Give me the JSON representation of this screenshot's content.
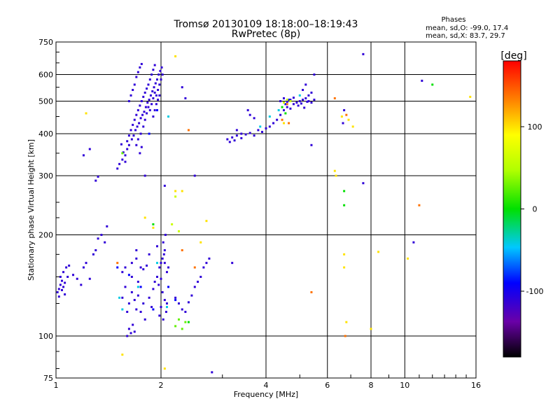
{
  "chart_data": {
    "type": "scatter",
    "title": "Tromsø 20130109 18:18:00–18:19:43",
    "subtitle": "RwPretec (8p)",
    "xlabel": "Frequency [MHz]",
    "ylabel": "Stationary phase Virtual Height [km]",
    "x_scale": "log",
    "y_scale": "log",
    "xlim": [
      1,
      16
    ],
    "ylim": [
      75,
      750
    ],
    "x_ticks": [
      1,
      2,
      4,
      6,
      8,
      10,
      16
    ],
    "x_tick_labels": [
      "1",
      "2",
      "4",
      "6",
      "8",
      "10",
      "16"
    ],
    "y_ticks": [
      75,
      100,
      200,
      300,
      400,
      500,
      600,
      750
    ],
    "y_tick_labels": [
      "75",
      "100",
      "200",
      "300",
      "400",
      "500",
      "600",
      "750"
    ],
    "grid": true,
    "stats": {
      "heading": "Phases",
      "line_o": "mean, sd,O: -99.0, 17.4",
      "line_x": "mean, sd,X:  83.7, 29.7"
    },
    "colorbar": {
      "label": "[deg]",
      "range": [
        -180,
        180
      ],
      "ticks": [
        100,
        0,
        -100
      ],
      "tick_labels": [
        "100",
        "0",
        "-100"
      ]
    },
    "series": [
      {
        "phase": -110,
        "points": [
          [
            1.01,
            135
          ],
          [
            1.02,
            138
          ],
          [
            1.03,
            142
          ],
          [
            1.04,
            146
          ],
          [
            1.05,
            140
          ],
          [
            1.06,
            133
          ],
          [
            1.03,
            150
          ],
          [
            1.05,
            155
          ],
          [
            1.07,
            160
          ],
          [
            1.09,
            162
          ],
          [
            1.02,
            131
          ],
          [
            1.04,
            137
          ],
          [
            1.06,
            144
          ],
          [
            1.08,
            150
          ],
          [
            1.15,
            148
          ],
          [
            1.18,
            142
          ],
          [
            1.2,
            160
          ],
          [
            1.22,
            165
          ],
          [
            1.25,
            148
          ],
          [
            1.12,
            152
          ],
          [
            1.3,
            180
          ],
          [
            1.32,
            195
          ],
          [
            1.28,
            175
          ],
          [
            1.35,
            200
          ],
          [
            1.4,
            212
          ],
          [
            1.38,
            190
          ],
          [
            1.55,
            130
          ],
          [
            1.58,
            140
          ],
          [
            1.62,
            125
          ],
          [
            1.65,
            135
          ],
          [
            1.6,
            118
          ],
          [
            1.68,
            128
          ],
          [
            1.7,
            120
          ],
          [
            1.72,
            132
          ],
          [
            1.75,
            118
          ],
          [
            1.78,
            125
          ],
          [
            1.62,
            105
          ],
          [
            1.64,
            102
          ],
          [
            1.66,
            108
          ],
          [
            1.68,
            103
          ],
          [
            1.6,
            100
          ],
          [
            1.8,
            112
          ],
          [
            1.85,
            130
          ],
          [
            1.88,
            122
          ],
          [
            1.9,
            138
          ],
          [
            1.92,
            145
          ],
          [
            1.95,
            150
          ],
          [
            1.98,
            160
          ],
          [
            2.0,
            165
          ],
          [
            2.02,
            170
          ],
          [
            2.04,
            175
          ],
          [
            2.05,
            180
          ],
          [
            2.03,
            190
          ],
          [
            2.06,
            200
          ],
          [
            2.0,
            148
          ],
          [
            1.97,
            142
          ],
          [
            2.08,
            155
          ],
          [
            2.1,
            160
          ],
          [
            2.02,
            135
          ],
          [
            2.05,
            128
          ],
          [
            2.0,
            122
          ],
          [
            2.07,
            118
          ],
          [
            1.98,
            115
          ],
          [
            2.03,
            112
          ],
          [
            2.08,
            125
          ],
          [
            1.65,
            165
          ],
          [
            1.7,
            170
          ],
          [
            1.75,
            160
          ],
          [
            1.78,
            158
          ],
          [
            1.82,
            162
          ],
          [
            1.58,
            160
          ],
          [
            1.55,
            155
          ],
          [
            2.2,
            130
          ],
          [
            2.25,
            125
          ],
          [
            2.3,
            120
          ],
          [
            2.35,
            118
          ],
          [
            2.4,
            126
          ],
          [
            2.45,
            132
          ],
          [
            2.5,
            140
          ],
          [
            2.55,
            145
          ],
          [
            2.6,
            150
          ],
          [
            2.65,
            160
          ],
          [
            2.7,
            165
          ],
          [
            2.75,
            170
          ],
          [
            2.8,
            78
          ],
          [
            2.5,
            300
          ],
          [
            2.05,
            280
          ],
          [
            2.3,
            550
          ],
          [
            2.35,
            510
          ],
          [
            1.8,
            300
          ],
          [
            1.3,
            290
          ],
          [
            1.32,
            298
          ],
          [
            1.2,
            345
          ],
          [
            1.25,
            360
          ],
          [
            1.5,
            315
          ],
          [
            1.52,
            325
          ],
          [
            1.55,
            335
          ],
          [
            1.58,
            345
          ],
          [
            1.6,
            360
          ],
          [
            1.62,
            370
          ],
          [
            1.65,
            385
          ],
          [
            1.67,
            395
          ],
          [
            1.69,
            410
          ],
          [
            1.71,
            420
          ],
          [
            1.73,
            430
          ],
          [
            1.75,
            445
          ],
          [
            1.77,
            455
          ],
          [
            1.79,
            465
          ],
          [
            1.81,
            480
          ],
          [
            1.83,
            495
          ],
          [
            1.85,
            505
          ],
          [
            1.87,
            520
          ],
          [
            1.89,
            535
          ],
          [
            1.91,
            550
          ],
          [
            1.93,
            565
          ],
          [
            1.95,
            580
          ],
          [
            1.97,
            600
          ],
          [
            1.99,
            615
          ],
          [
            2.01,
            630
          ],
          [
            1.6,
            380
          ],
          [
            1.62,
            395
          ],
          [
            1.64,
            410
          ],
          [
            1.66,
            425
          ],
          [
            1.68,
            440
          ],
          [
            1.7,
            455
          ],
          [
            1.72,
            470
          ],
          [
            1.74,
            485
          ],
          [
            1.76,
            500
          ],
          [
            1.78,
            515
          ],
          [
            1.8,
            530
          ],
          [
            1.82,
            545
          ],
          [
            1.84,
            560
          ],
          [
            1.86,
            580
          ],
          [
            1.88,
            600
          ],
          [
            1.9,
            620
          ],
          [
            1.92,
            640
          ],
          [
            1.7,
            590
          ],
          [
            1.72,
            610
          ],
          [
            1.74,
            630
          ],
          [
            1.76,
            645
          ],
          [
            1.68,
            560
          ],
          [
            1.66,
            540
          ],
          [
            1.64,
            520
          ],
          [
            1.62,
            500
          ],
          [
            1.75,
            400
          ],
          [
            1.78,
            420
          ],
          [
            1.8,
            440
          ],
          [
            1.82,
            460
          ],
          [
            1.84,
            480
          ],
          [
            1.86,
            470
          ],
          [
            1.88,
            490
          ],
          [
            1.9,
            510
          ],
          [
            1.92,
            530
          ],
          [
            1.94,
            520
          ],
          [
            1.96,
            540
          ],
          [
            1.98,
            560
          ],
          [
            2.0,
            580
          ],
          [
            2.02,
            600
          ],
          [
            1.7,
            370
          ],
          [
            1.72,
            385
          ],
          [
            1.74,
            350
          ],
          [
            1.76,
            365
          ],
          [
            1.58,
            330
          ],
          [
            1.56,
            352
          ],
          [
            1.54,
            372
          ],
          [
            1.9,
            450
          ],
          [
            1.92,
            470
          ],
          [
            1.94,
            490
          ],
          [
            1.96,
            505
          ],
          [
            1.98,
            520
          ],
          [
            3.1,
            385
          ],
          [
            3.15,
            378
          ],
          [
            3.2,
            390
          ],
          [
            3.25,
            382
          ],
          [
            3.3,
            395
          ],
          [
            3.4,
            388
          ],
          [
            3.5,
            398
          ],
          [
            3.6,
            402
          ],
          [
            3.7,
            395
          ],
          [
            3.8,
            410
          ],
          [
            3.9,
            405
          ],
          [
            4.0,
            415
          ],
          [
            4.1,
            420
          ],
          [
            4.2,
            430
          ],
          [
            4.3,
            440
          ],
          [
            4.4,
            455
          ],
          [
            4.5,
            470
          ],
          [
            4.6,
            480
          ],
          [
            4.7,
            475
          ],
          [
            4.8,
            490
          ],
          [
            4.9,
            495
          ],
          [
            5.0,
            500
          ],
          [
            5.1,
            505
          ],
          [
            5.2,
            510
          ],
          [
            5.3,
            520
          ],
          [
            5.4,
            530
          ],
          [
            5.2,
            560
          ],
          [
            5.1,
            540
          ],
          [
            5.3,
            500
          ],
          [
            5.4,
            495
          ],
          [
            5.5,
            505
          ],
          [
            4.95,
            485
          ],
          [
            5.05,
            492
          ],
          [
            5.15,
            478
          ],
          [
            5.25,
            498
          ],
          [
            3.55,
            470
          ],
          [
            3.6,
            455
          ],
          [
            3.7,
            445
          ],
          [
            3.3,
            410
          ],
          [
            3.4,
            400
          ],
          [
            4.4,
            500
          ],
          [
            4.5,
            510
          ],
          [
            4.6,
            498
          ],
          [
            4.7,
            505
          ],
          [
            4.8,
            512
          ],
          [
            5.5,
            600
          ],
          [
            5.4,
            370
          ],
          [
            6.7,
            470
          ],
          [
            6.65,
            430
          ],
          [
            7.6,
            690
          ],
          [
            7.6,
            285
          ],
          [
            10.6,
            190
          ],
          [
            11.2,
            575
          ],
          [
            3.2,
            165
          ],
          [
            2.05,
            165
          ],
          [
            1.7,
            180
          ],
          [
            1.85,
            175
          ],
          [
            1.95,
            185
          ],
          [
            1.65,
            150
          ],
          [
            1.72,
            145
          ]
        ]
      },
      {
        "phase": -90,
        "points": [
          [
            1.5,
            160
          ],
          [
            1.62,
            152
          ],
          [
            1.75,
            140
          ],
          [
            1.9,
            120
          ],
          [
            2.1,
            140
          ],
          [
            2.2,
            128
          ],
          [
            1.85,
            400
          ],
          [
            1.95,
            470
          ],
          [
            4.55,
            490
          ],
          [
            4.65,
            505
          ]
        ]
      },
      {
        "phase": -40,
        "points": [
          [
            1.52,
            130
          ],
          [
            1.55,
            120
          ],
          [
            1.72,
            140
          ],
          [
            1.95,
            165
          ],
          [
            2.08,
            122
          ],
          [
            2.1,
            450
          ],
          [
            5.0,
            520
          ],
          [
            4.35,
            470
          ],
          [
            3.85,
            420
          ],
          [
            4.1,
            450
          ]
        ]
      },
      {
        "phase": 0,
        "points": [
          [
            1.9,
            215
          ],
          [
            2.4,
            110
          ],
          [
            6.7,
            270
          ],
          [
            6.7,
            245
          ],
          [
            4.45,
            480
          ],
          [
            4.55,
            460
          ],
          [
            12.0,
            560
          ]
        ]
      },
      {
        "phase": 25,
        "points": [
          [
            1.55,
            350
          ],
          [
            2.2,
            107
          ],
          [
            2.3,
            105
          ],
          [
            2.35,
            110
          ],
          [
            2.25,
            112
          ]
        ]
      },
      {
        "phase": 60,
        "points": [
          [
            4.5,
            495
          ],
          [
            4.6,
            505
          ],
          [
            4.7,
            500
          ],
          [
            2.2,
            260
          ],
          [
            2.15,
            215
          ],
          [
            2.25,
            205
          ]
        ]
      },
      {
        "phase": 100,
        "points": [
          [
            6.3,
            310
          ],
          [
            6.35,
            300
          ],
          [
            6.9,
            440
          ],
          [
            7.1,
            420
          ],
          [
            8.4,
            178
          ],
          [
            15.4,
            515
          ],
          [
            1.9,
            210
          ],
          [
            2.2,
            270
          ],
          [
            2.3,
            270
          ],
          [
            2.7,
            220
          ],
          [
            1.8,
            225
          ],
          [
            2.2,
            680
          ],
          [
            1.22,
            460
          ],
          [
            6.6,
            450
          ],
          [
            6.7,
            175
          ],
          [
            6.7,
            160
          ],
          [
            10.2,
            170
          ],
          [
            8.0,
            105
          ],
          [
            6.8,
            110
          ],
          [
            2.6,
            190
          ],
          [
            1.55,
            88
          ],
          [
            2.05,
            80
          ],
          [
            4.5,
            430
          ]
        ]
      },
      {
        "phase": 140,
        "points": [
          [
            2.4,
            410
          ],
          [
            6.75,
            100
          ],
          [
            6.3,
            510
          ],
          [
            6.8,
            455
          ],
          [
            4.45,
            440
          ],
          [
            4.65,
            430
          ],
          [
            4.6,
            490
          ],
          [
            5.4,
            135
          ],
          [
            11.0,
            245
          ],
          [
            2.3,
            180
          ],
          [
            2.5,
            160
          ],
          [
            1.5,
            165
          ]
        ]
      }
    ]
  }
}
